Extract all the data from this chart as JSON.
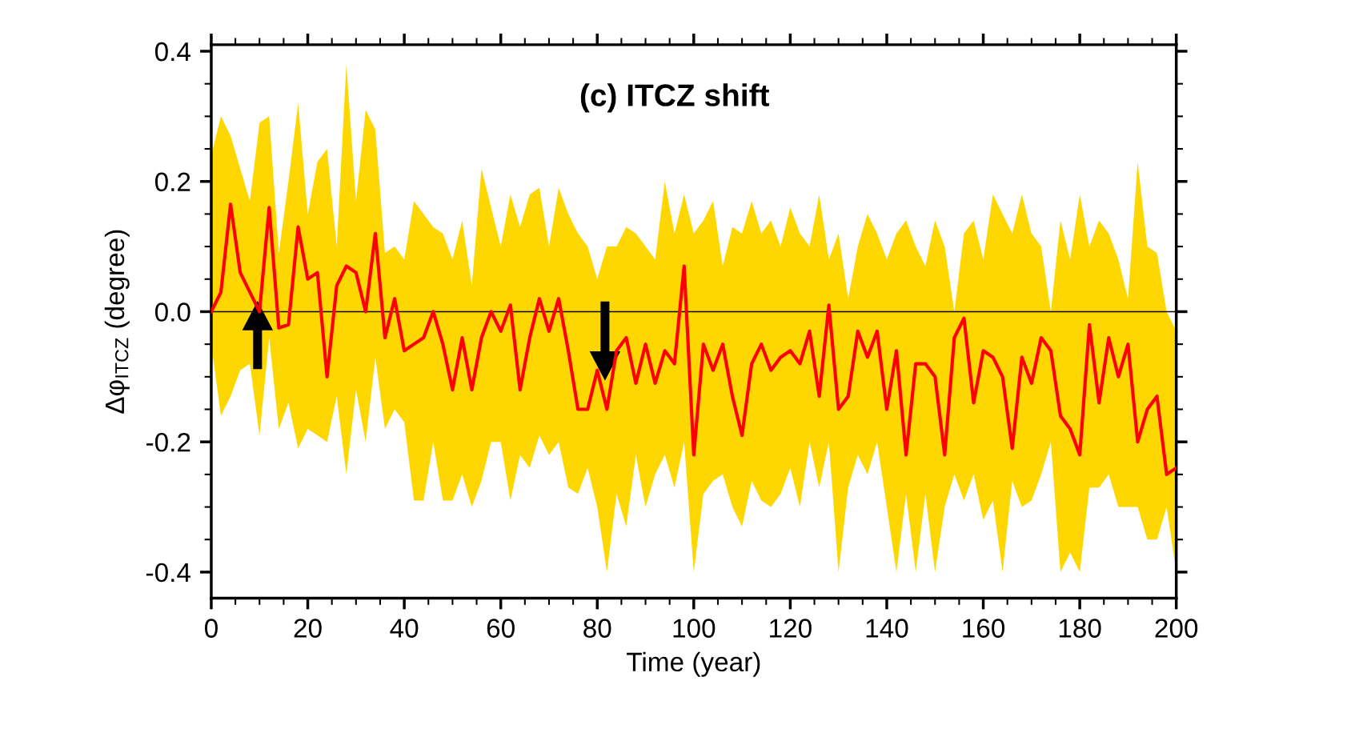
{
  "chart_data": {
    "type": "line",
    "title": "(c) ITCZ shift",
    "xlabel": "Time (year)",
    "ylabel": "Δφ$_{ITCZ}$ (degree)",
    "x": [
      0,
      2,
      4,
      6,
      8,
      10,
      12,
      14,
      16,
      18,
      20,
      22,
      24,
      26,
      28,
      30,
      32,
      34,
      36,
      38,
      40,
      42,
      44,
      46,
      48,
      50,
      52,
      54,
      56,
      58,
      60,
      62,
      64,
      66,
      68,
      70,
      72,
      74,
      76,
      78,
      80,
      82,
      84,
      86,
      88,
      90,
      92,
      94,
      96,
      98,
      100,
      102,
      104,
      106,
      108,
      110,
      112,
      114,
      116,
      118,
      120,
      122,
      124,
      126,
      128,
      130,
      132,
      134,
      136,
      138,
      140,
      142,
      144,
      146,
      148,
      150,
      152,
      154,
      156,
      158,
      160,
      162,
      164,
      166,
      168,
      170,
      172,
      174,
      176,
      178,
      180,
      182,
      184,
      186,
      188,
      190,
      192,
      194,
      196,
      198,
      200
    ],
    "series": [
      {
        "color": "#ff0000",
        "values": [
          0.0,
          0.03,
          0.165,
          0.06,
          0.03,
          0.0,
          0.16,
          -0.025,
          -0.02,
          0.13,
          0.05,
          0.06,
          -0.1,
          0.04,
          0.07,
          0.06,
          0.0,
          0.12,
          -0.04,
          0.02,
          -0.06,
          -0.05,
          -0.04,
          0.0,
          -0.05,
          -0.12,
          -0.04,
          -0.12,
          -0.04,
          0.0,
          -0.03,
          0.01,
          -0.12,
          -0.04,
          0.02,
          -0.03,
          0.02,
          -0.06,
          -0.15,
          -0.15,
          -0.09,
          -0.15,
          -0.06,
          -0.04,
          -0.11,
          -0.05,
          -0.11,
          -0.06,
          -0.08,
          0.07,
          -0.22,
          -0.05,
          -0.09,
          -0.05,
          -0.13,
          -0.19,
          -0.08,
          -0.05,
          -0.09,
          -0.07,
          -0.06,
          -0.08,
          -0.03,
          -0.13,
          0.01,
          -0.15,
          -0.13,
          -0.03,
          -0.07,
          -0.03,
          -0.15,
          -0.06,
          -0.22,
          -0.08,
          -0.08,
          -0.1,
          -0.22,
          -0.04,
          -0.01,
          -0.14,
          -0.06,
          -0.07,
          -0.1,
          -0.21,
          -0.07,
          -0.11,
          -0.04,
          -0.06,
          -0.16,
          -0.18,
          -0.22,
          -0.02,
          -0.14,
          -0.04,
          -0.1,
          -0.05,
          -0.2,
          -0.15,
          -0.13,
          -0.25,
          -0.24
        ],
        "upper": [
          0.24,
          0.3,
          0.27,
          0.22,
          0.17,
          0.29,
          0.3,
          0.09,
          0.2,
          0.32,
          0.15,
          0.23,
          0.25,
          0.1,
          0.38,
          0.17,
          0.31,
          0.28,
          0.09,
          0.1,
          0.08,
          0.17,
          0.15,
          0.13,
          0.12,
          0.08,
          0.14,
          0.04,
          0.22,
          0.16,
          0.1,
          0.18,
          0.13,
          0.18,
          0.19,
          0.1,
          0.19,
          0.15,
          0.12,
          0.1,
          0.05,
          0.1,
          0.1,
          0.13,
          0.12,
          0.1,
          0.08,
          0.2,
          0.12,
          0.18,
          0.12,
          0.14,
          0.17,
          0.07,
          0.13,
          0.12,
          0.17,
          0.12,
          0.14,
          0.1,
          0.16,
          0.12,
          0.1,
          0.18,
          0.08,
          0.12,
          0.02,
          0.1,
          0.15,
          0.12,
          0.08,
          0.12,
          0.14,
          0.1,
          0.07,
          0.14,
          0.1,
          0.0,
          0.12,
          0.14,
          0.08,
          0.18,
          0.15,
          0.12,
          0.18,
          0.12,
          0.1,
          0.0,
          0.14,
          0.08,
          0.18,
          0.1,
          0.14,
          0.12,
          0.08,
          0.02,
          0.23,
          0.1,
          0.09,
          0.0,
          -0.03
        ],
        "lower": [
          -0.05,
          -0.16,
          -0.13,
          -0.09,
          -0.08,
          -0.19,
          -0.04,
          -0.18,
          -0.14,
          -0.21,
          -0.18,
          -0.19,
          -0.2,
          -0.13,
          -0.25,
          -0.12,
          -0.2,
          -0.07,
          -0.18,
          -0.15,
          -0.17,
          -0.29,
          -0.29,
          -0.2,
          -0.29,
          -0.29,
          -0.25,
          -0.3,
          -0.26,
          -0.2,
          -0.2,
          -0.29,
          -0.22,
          -0.24,
          -0.19,
          -0.22,
          -0.2,
          -0.27,
          -0.28,
          -0.24,
          -0.3,
          -0.4,
          -0.28,
          -0.33,
          -0.22,
          -0.3,
          -0.25,
          -0.22,
          -0.27,
          -0.2,
          -0.4,
          -0.28,
          -0.26,
          -0.25,
          -0.3,
          -0.33,
          -0.26,
          -0.29,
          -0.3,
          -0.28,
          -0.24,
          -0.3,
          -0.2,
          -0.27,
          -0.2,
          -0.4,
          -0.27,
          -0.22,
          -0.25,
          -0.2,
          -0.3,
          -0.4,
          -0.28,
          -0.4,
          -0.28,
          -0.4,
          -0.3,
          -0.25,
          -0.29,
          -0.25,
          -0.32,
          -0.29,
          -0.4,
          -0.26,
          -0.3,
          -0.29,
          -0.25,
          -0.2,
          -0.4,
          -0.37,
          -0.4,
          -0.27,
          -0.27,
          -0.25,
          -0.3,
          -0.3,
          -0.3,
          -0.35,
          -0.35,
          -0.3,
          -0.4
        ]
      }
    ],
    "xlim": [
      0,
      200
    ],
    "xticks": [
      0,
      20,
      40,
      60,
      80,
      100,
      120,
      140,
      160,
      180,
      200
    ],
    "ylim": [
      -0.44,
      0.41
    ],
    "yticks": [
      {
        "value": -0.4,
        "label": "-0.4"
      },
      {
        "value": -0.2,
        "label": "-0.2"
      },
      {
        "value": 0,
        "label": "0.0"
      },
      0.2,
      0.4
    ],
    "ref_lines": [
      {
        "axis": "y",
        "value": 0,
        "color": "#000000"
      }
    ],
    "grid": false,
    "legend": false,
    "marker": "none",
    "line_style": "solid"
  }
}
